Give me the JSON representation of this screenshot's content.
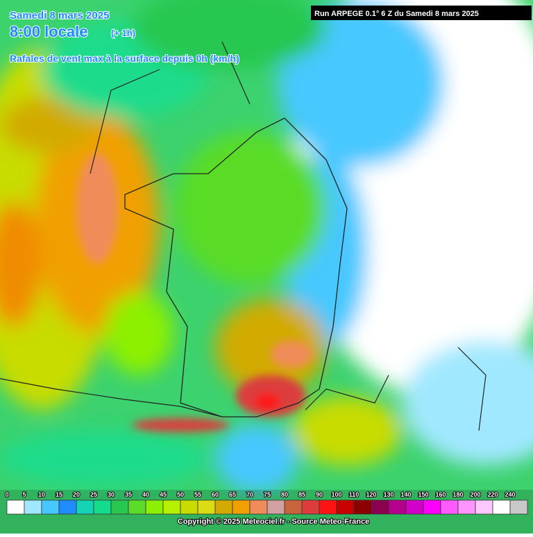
{
  "header": {
    "date": "Samedi 8 mars 2025",
    "time": "8:00 locale",
    "offset": "(+ 1h)",
    "subtitle": "Rafales de vent max à la surface depuis 0h (km/h)",
    "run": "Run ARPEGE 0.1° 6 Z du Samedi 8 mars 2025"
  },
  "legend": {
    "items": [
      {
        "label": "0",
        "color": "#ffffff"
      },
      {
        "label": "5",
        "color": "#a0e8ff"
      },
      {
        "label": "10",
        "color": "#46c8ff"
      },
      {
        "label": "15",
        "color": "#1e8cff"
      },
      {
        "label": "20",
        "color": "#14d2b4"
      },
      {
        "label": "25",
        "color": "#14dc8c"
      },
      {
        "label": "30",
        "color": "#28c850"
      },
      {
        "label": "35",
        "color": "#5adc28"
      },
      {
        "label": "40",
        "color": "#8cf000"
      },
      {
        "label": "45",
        "color": "#b4f000"
      },
      {
        "label": "50",
        "color": "#c8dc00"
      },
      {
        "label": "55",
        "color": "#dcdc14"
      },
      {
        "label": "60",
        "color": "#d2aa00"
      },
      {
        "label": "65",
        "color": "#f0a000"
      },
      {
        "label": "70",
        "color": "#f08c5a"
      },
      {
        "label": "75",
        "color": "#d2a0a0"
      },
      {
        "label": "80",
        "color": "#c8643c"
      },
      {
        "label": "85",
        "color": "#dc3c3c"
      },
      {
        "label": "90",
        "color": "#ff1414"
      },
      {
        "label": "100",
        "color": "#c80000"
      },
      {
        "label": "110",
        "color": "#8c0000"
      },
      {
        "label": "120",
        "color": "#8c0050"
      },
      {
        "label": "130",
        "color": "#b4008c"
      },
      {
        "label": "140",
        "color": "#d200c8"
      },
      {
        "label": "150",
        "color": "#ff00ff"
      },
      {
        "label": "160",
        "color": "#ff5aff"
      },
      {
        "label": "180",
        "color": "#ff96ff"
      },
      {
        "label": "200",
        "color": "#ffc8ff"
      },
      {
        "label": "220",
        "color": "#ffffff"
      },
      {
        "label": "240",
        "color": "#c8c8c8"
      }
    ]
  },
  "footer": {
    "copyright": "Copyright © 2025 Meteociel.fr - Source Meteo-France"
  }
}
